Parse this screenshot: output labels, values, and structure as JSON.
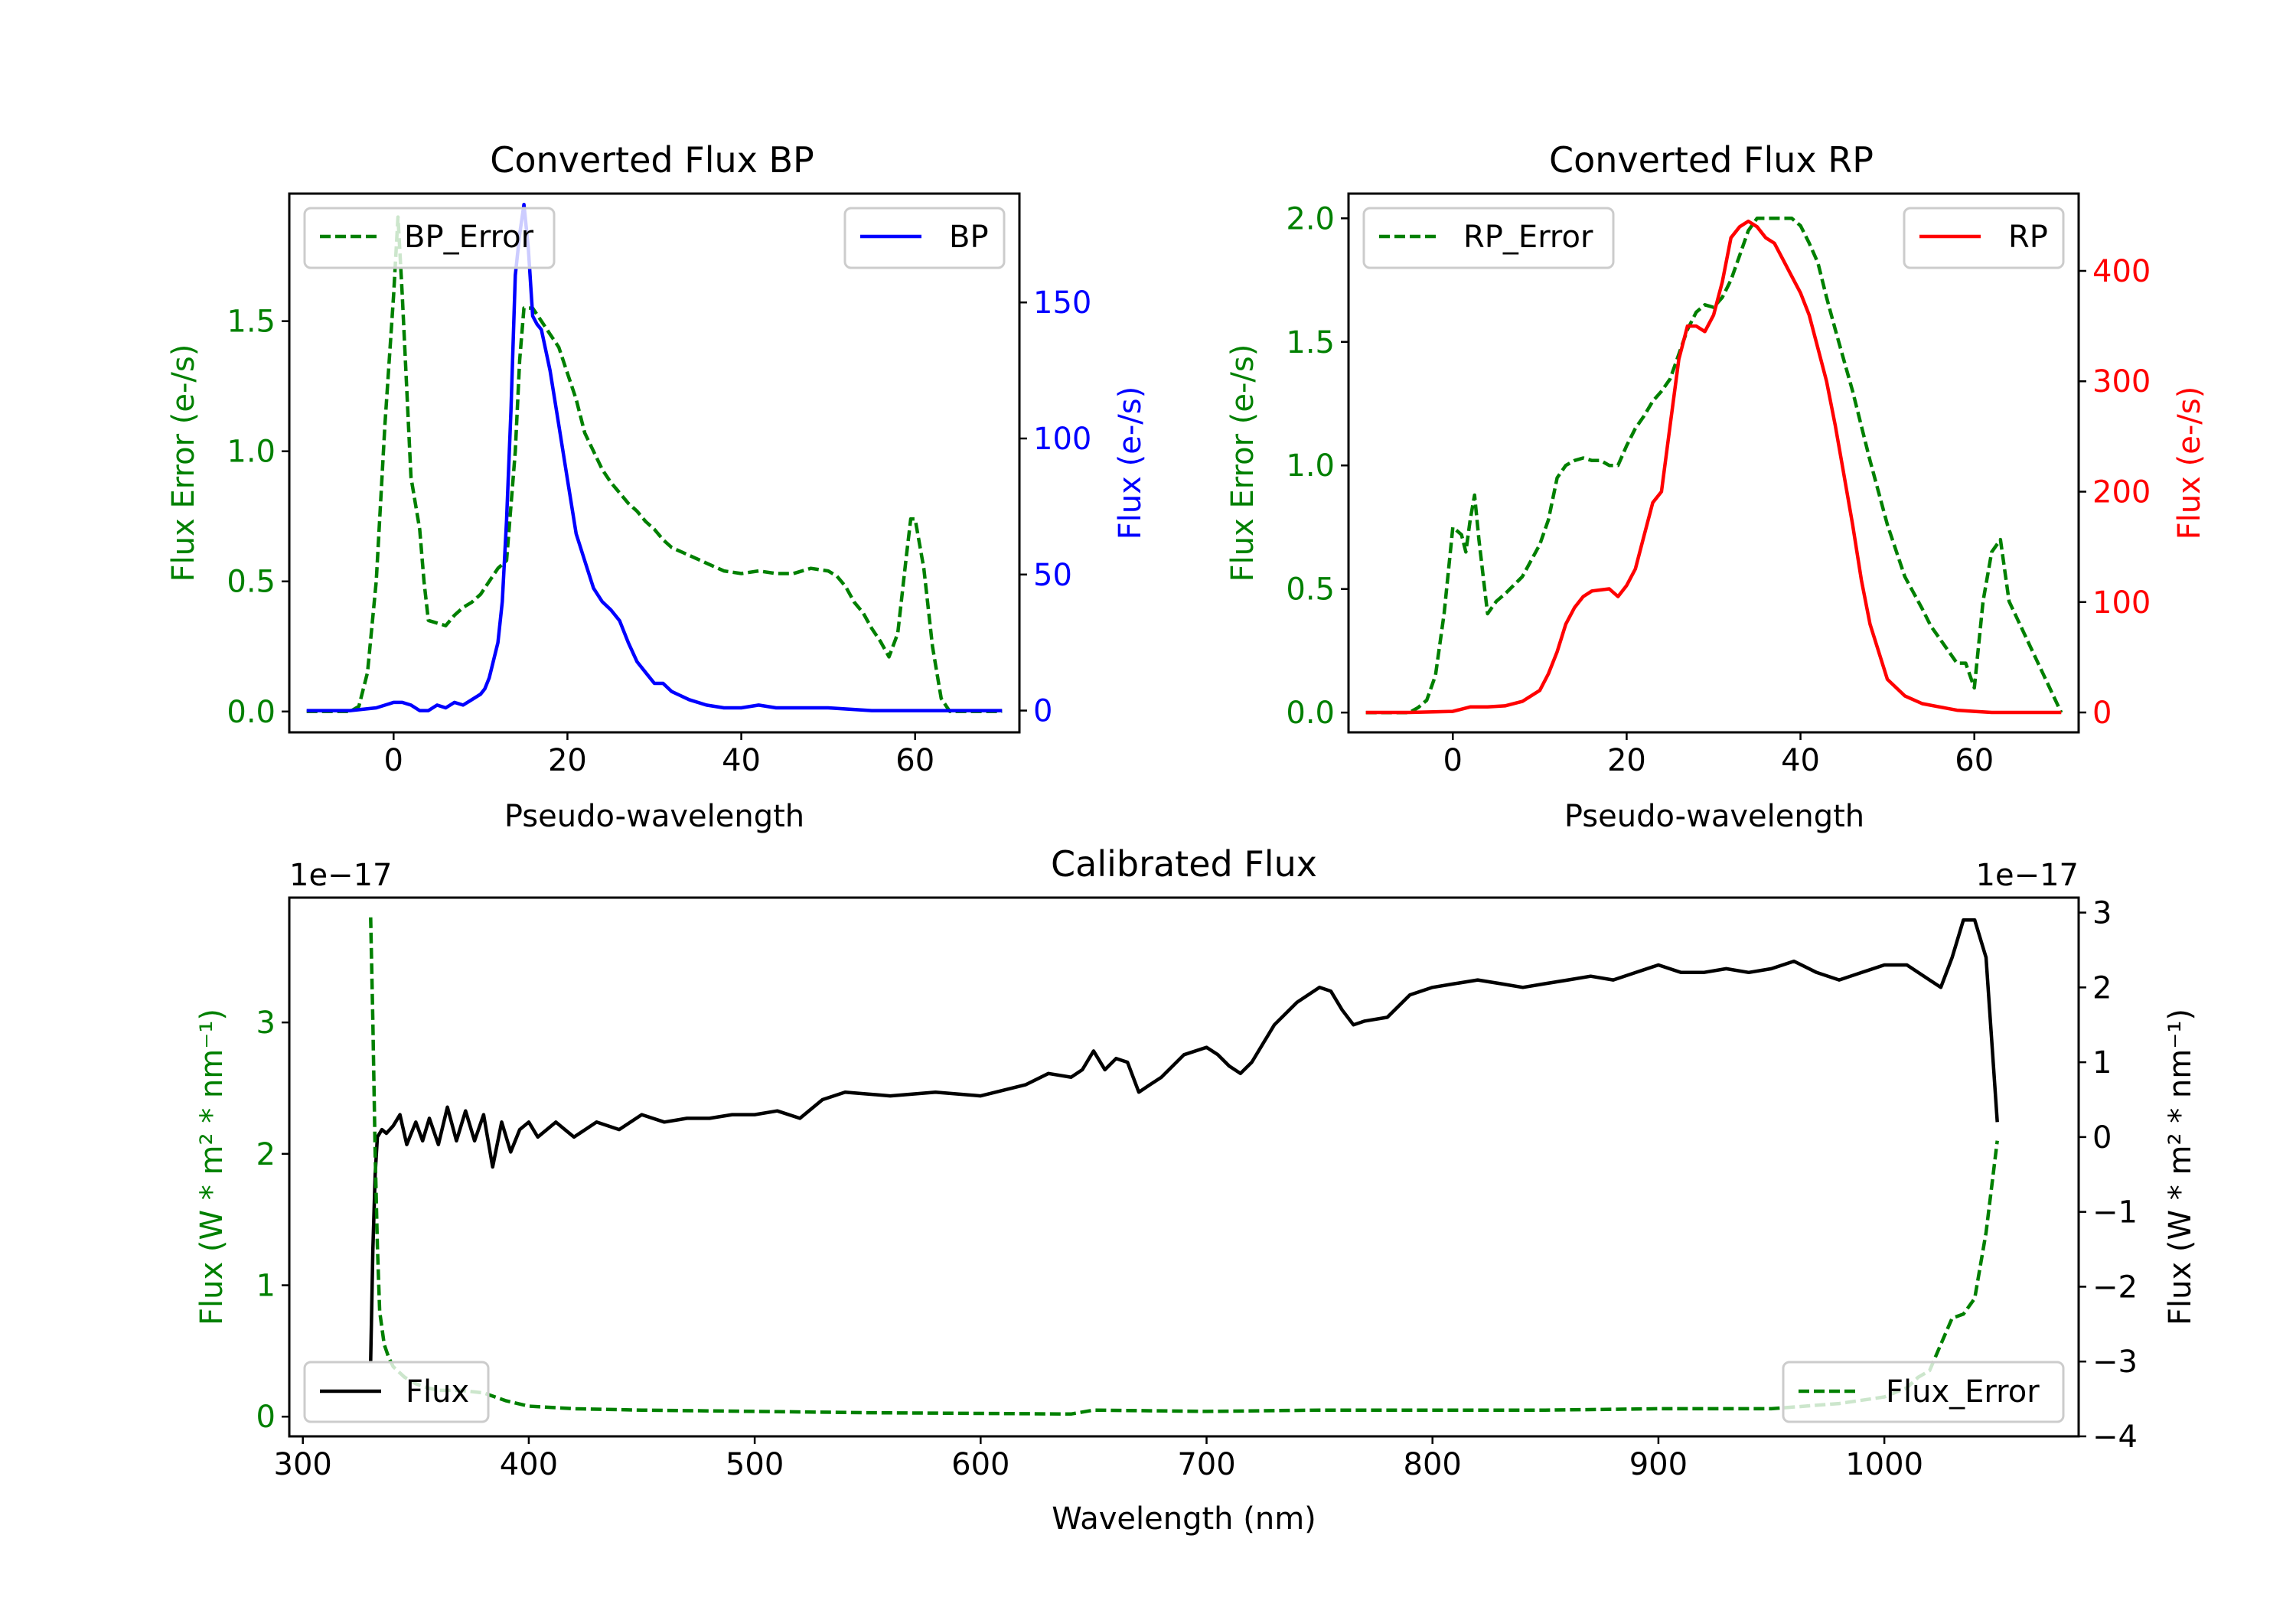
{
  "chart_data": [
    {
      "id": "bp",
      "type": "line",
      "title": "Converted Flux BP",
      "xlabel": "Pseudo-wavelength",
      "xlim": [
        -12,
        72
      ],
      "x_ticks": [
        0,
        20,
        40,
        60
      ],
      "left_axis": {
        "label": "Flux Error (e-/s)",
        "color": "#008000",
        "ylim": [
          -0.08,
          1.99
        ],
        "ticks": [
          0.0,
          0.5,
          1.0,
          1.5
        ],
        "tick_labels": [
          "0.0",
          "0.5",
          "1.0",
          "1.5"
        ]
      },
      "right_axis": {
        "label": "Flux (e-/s)",
        "color": "#0000ff",
        "ylim": [
          -8,
          190
        ],
        "ticks": [
          0,
          50,
          100,
          150
        ],
        "tick_labels": [
          "0",
          "50",
          "100",
          "150"
        ]
      },
      "legend_left": {
        "label": "BP_Error",
        "placement": "upper left"
      },
      "legend_right": {
        "label": "BP",
        "placement": "upper right"
      },
      "series": [
        {
          "name": "BP_Error",
          "axis": "left",
          "color": "#008000",
          "style": "dashed",
          "x": [
            -10,
            -5,
            -4,
            -3,
            -2,
            -1,
            0,
            0.5,
            1,
            2,
            2.5,
            3,
            3.5,
            4,
            5,
            6,
            7,
            8,
            9,
            10,
            11,
            12,
            13,
            14,
            14.5,
            15,
            16,
            17,
            18,
            19,
            20,
            21,
            22,
            23,
            24,
            25,
            26,
            27,
            28,
            29,
            30,
            31,
            32,
            34,
            36,
            38,
            40,
            42,
            44,
            46,
            48,
            50,
            51,
            52,
            53,
            54,
            55,
            56,
            57,
            58,
            59,
            59.5,
            60,
            61,
            62,
            63,
            64,
            66,
            70
          ],
          "values": [
            0.0,
            0.0,
            0.02,
            0.15,
            0.5,
            1.1,
            1.6,
            1.9,
            1.6,
            0.9,
            0.8,
            0.7,
            0.5,
            0.35,
            0.34,
            0.33,
            0.37,
            0.4,
            0.42,
            0.45,
            0.5,
            0.55,
            0.58,
            1.0,
            1.35,
            1.55,
            1.55,
            1.5,
            1.45,
            1.4,
            1.3,
            1.2,
            1.07,
            1.0,
            0.93,
            0.88,
            0.84,
            0.8,
            0.77,
            0.73,
            0.7,
            0.66,
            0.63,
            0.6,
            0.57,
            0.54,
            0.53,
            0.54,
            0.53,
            0.53,
            0.55,
            0.54,
            0.52,
            0.48,
            0.42,
            0.38,
            0.32,
            0.27,
            0.21,
            0.3,
            0.6,
            0.74,
            0.74,
            0.55,
            0.25,
            0.05,
            0.0,
            0.0,
            0.0
          ]
        },
        {
          "name": "BP",
          "axis": "right",
          "color": "#0000ff",
          "style": "solid",
          "x": [
            -10,
            -5,
            -2,
            0,
            1,
            2,
            3,
            4,
            5,
            6,
            7,
            8,
            9,
            10,
            10.5,
            11,
            12,
            12.5,
            13,
            13.5,
            14,
            14.5,
            15,
            15.5,
            16,
            16.5,
            17,
            18,
            19,
            20,
            21,
            22,
            23,
            24,
            25,
            26,
            27,
            28,
            29,
            30,
            31,
            32,
            34,
            36,
            38,
            40,
            42,
            44,
            46,
            48,
            50,
            55,
            60,
            65,
            70
          ],
          "values": [
            0,
            0,
            1,
            3,
            3,
            2,
            0,
            0,
            2,
            1,
            3,
            2,
            4,
            6,
            8,
            12,
            25,
            40,
            70,
            110,
            160,
            175,
            186,
            170,
            145,
            142,
            140,
            125,
            105,
            85,
            65,
            55,
            45,
            40,
            37,
            33,
            25,
            18,
            14,
            10,
            10,
            7,
            4,
            2,
            1,
            1,
            2,
            1,
            1,
            1,
            1,
            0,
            0,
            0,
            0
          ]
        }
      ]
    },
    {
      "id": "rp",
      "type": "line",
      "title": "Converted Flux RP",
      "xlabel": "Pseudo-wavelength",
      "xlim": [
        -12,
        72
      ],
      "x_ticks": [
        0,
        20,
        40,
        60
      ],
      "left_axis": {
        "label": "Flux Error (e-/s)",
        "color": "#008000",
        "ylim": [
          -0.08,
          2.1
        ],
        "ticks": [
          0.0,
          0.5,
          1.0,
          1.5,
          2.0
        ],
        "tick_labels": [
          "0.0",
          "0.5",
          "1.0",
          "1.5",
          "2.0"
        ]
      },
      "right_axis": {
        "label": "Flux (e-/s)",
        "color": "#ff0000",
        "ylim": [
          -18,
          470
        ],
        "ticks": [
          0,
          100,
          200,
          300,
          400
        ],
        "tick_labels": [
          "0",
          "100",
          "200",
          "300",
          "400"
        ]
      },
      "legend_left": {
        "label": "RP_Error",
        "placement": "upper left"
      },
      "legend_right": {
        "label": "RP",
        "placement": "upper right"
      },
      "series": [
        {
          "name": "RP_Error",
          "axis": "right-free",
          "color": "#008000",
          "style": "dashed",
          "axis_ref": "left",
          "x": [
            -10,
            -5,
            -4,
            -3,
            -2,
            -1,
            0,
            1,
            1.5,
            2,
            2.5,
            3,
            3.5,
            4,
            5,
            6,
            8,
            10,
            11,
            12,
            13,
            14,
            15,
            16,
            17,
            18,
            19,
            20,
            21,
            22,
            23,
            24,
            25,
            26,
            27,
            28,
            29,
            30,
            31,
            32,
            33,
            34,
            35,
            36,
            37,
            38,
            39,
            40,
            41,
            42,
            43,
            44,
            46,
            48,
            50,
            52,
            54,
            55,
            56,
            57,
            58,
            59,
            60,
            61,
            62,
            63,
            64,
            70
          ],
          "values": [
            0.0,
            0.0,
            0.02,
            0.05,
            0.15,
            0.4,
            0.75,
            0.72,
            0.65,
            0.78,
            0.88,
            0.7,
            0.55,
            0.4,
            0.45,
            0.48,
            0.55,
            0.68,
            0.78,
            0.95,
            1.0,
            1.02,
            1.03,
            1.02,
            1.02,
            1.0,
            1.0,
            1.08,
            1.15,
            1.2,
            1.26,
            1.3,
            1.35,
            1.45,
            1.55,
            1.62,
            1.65,
            1.64,
            1.68,
            1.75,
            1.85,
            1.95,
            2.0,
            2.0,
            2.0,
            2.0,
            2.0,
            1.97,
            1.9,
            1.82,
            1.68,
            1.55,
            1.3,
            1.02,
            0.76,
            0.55,
            0.42,
            0.35,
            0.3,
            0.25,
            0.2,
            0.2,
            0.1,
            0.45,
            0.65,
            0.7,
            0.45,
            0.0
          ]
        },
        {
          "name": "RP",
          "axis": "right",
          "color": "#ff0000",
          "style": "solid",
          "x": [
            -10,
            -5,
            0,
            2,
            4,
            6,
            8,
            10,
            11,
            12,
            13,
            14,
            15,
            16,
            17,
            18,
            19,
            20,
            21,
            22,
            23,
            24,
            25,
            26,
            27,
            28,
            29,
            30,
            31,
            32,
            33,
            34,
            35,
            36,
            37,
            38,
            39,
            40,
            41,
            42,
            43,
            44,
            45,
            46,
            47,
            48,
            50,
            52,
            54,
            56,
            58,
            60,
            62,
            64,
            70
          ],
          "values": [
            0,
            0,
            1,
            5,
            5,
            6,
            10,
            20,
            35,
            55,
            80,
            95,
            105,
            110,
            111,
            112,
            105,
            115,
            130,
            160,
            190,
            200,
            260,
            320,
            350,
            350,
            345,
            360,
            390,
            430,
            440,
            445,
            440,
            430,
            425,
            410,
            395,
            380,
            360,
            330,
            300,
            260,
            215,
            170,
            120,
            80,
            30,
            15,
            8,
            5,
            2,
            1,
            0,
            0,
            0
          ]
        }
      ]
    },
    {
      "id": "cal",
      "type": "line",
      "title": "Calibrated Flux",
      "xlabel": "Wavelength (nm)",
      "xlim": [
        294,
        1086
      ],
      "x_ticks": [
        300,
        400,
        500,
        600,
        700,
        800,
        900,
        1000
      ],
      "left_axis": {
        "label": "Flux (W * m² * nm⁻¹)",
        "color": "#008000",
        "offset_text": "1e−17",
        "ylim": [
          -0.15,
          3.95
        ],
        "ticks": [
          0,
          1,
          2,
          3
        ],
        "tick_labels": [
          "0",
          "1",
          "2",
          "3"
        ]
      },
      "right_axis": {
        "label": "Flux (W * m² * nm⁻¹)",
        "color": "#000000",
        "offset_text": "1e−17",
        "ylim": [
          -4.0,
          3.2
        ],
        "ticks": [
          -4,
          -3,
          -2,
          -1,
          0,
          1,
          2,
          3
        ],
        "tick_labels": [
          "−4",
          "−3",
          "−2",
          "−1",
          "0",
          "1",
          "2",
          "3"
        ]
      },
      "legend_left": {
        "label": "Flux",
        "placement": "lower left"
      },
      "legend_right": {
        "label": "Flux_Error",
        "placement": "lower right"
      },
      "series": [
        {
          "name": "Flux",
          "axis": "right",
          "color": "#000000",
          "style": "solid",
          "x": [
            330,
            331,
            332,
            333,
            335,
            337,
            340,
            343,
            346,
            350,
            353,
            356,
            360,
            364,
            368,
            372,
            376,
            380,
            384,
            388,
            392,
            396,
            400,
            404,
            408,
            412,
            416,
            420,
            430,
            440,
            450,
            460,
            470,
            480,
            490,
            500,
            510,
            520,
            530,
            540,
            560,
            580,
            600,
            620,
            630,
            640,
            645,
            650,
            655,
            660,
            665,
            670,
            675,
            680,
            690,
            700,
            705,
            710,
            715,
            720,
            730,
            740,
            750,
            755,
            760,
            765,
            770,
            780,
            790,
            800,
            810,
            820,
            830,
            840,
            850,
            860,
            870,
            880,
            890,
            900,
            910,
            920,
            930,
            940,
            950,
            960,
            970,
            980,
            990,
            1000,
            1010,
            1020,
            1025,
            1030,
            1035,
            1040,
            1045,
            1050
          ],
          "values": [
            -3.0,
            -1.5,
            -0.5,
            0.0,
            0.1,
            0.05,
            0.15,
            0.3,
            -0.1,
            0.2,
            -0.05,
            0.25,
            -0.1,
            0.4,
            -0.05,
            0.35,
            -0.05,
            0.3,
            -0.4,
            0.2,
            -0.2,
            0.1,
            0.2,
            0.0,
            0.1,
            0.2,
            0.1,
            0.0,
            0.2,
            0.1,
            0.3,
            0.2,
            0.25,
            0.25,
            0.3,
            0.3,
            0.35,
            0.25,
            0.5,
            0.6,
            0.55,
            0.6,
            0.55,
            0.7,
            0.85,
            0.8,
            0.9,
            1.15,
            0.9,
            1.05,
            1.0,
            0.6,
            0.7,
            0.8,
            1.1,
            1.2,
            1.1,
            0.95,
            0.85,
            1.0,
            1.5,
            1.8,
            2.0,
            1.95,
            1.7,
            1.5,
            1.55,
            1.6,
            1.9,
            2.0,
            2.05,
            2.1,
            2.05,
            2.0,
            2.05,
            2.1,
            2.15,
            2.1,
            2.2,
            2.3,
            2.2,
            2.2,
            2.25,
            2.2,
            2.25,
            2.35,
            2.2,
            2.1,
            2.2,
            2.3,
            2.3,
            2.1,
            2.0,
            2.4,
            2.9,
            2.9,
            2.4,
            0.2
          ]
        },
        {
          "name": "Flux_Error",
          "axis": "left",
          "color": "#008000",
          "style": "dashed",
          "x": [
            330,
            331,
            332,
            333,
            334,
            336,
            338,
            340,
            345,
            350,
            355,
            360,
            370,
            380,
            390,
            400,
            420,
            450,
            500,
            550,
            600,
            640,
            650,
            700,
            750,
            800,
            850,
            900,
            950,
            980,
            1000,
            1010,
            1015,
            1020,
            1025,
            1030,
            1035,
            1040,
            1045,
            1050
          ],
          "values": [
            3.8,
            3.0,
            2.0,
            1.3,
            0.8,
            0.55,
            0.45,
            0.38,
            0.3,
            0.25,
            0.22,
            0.2,
            0.2,
            0.18,
            0.12,
            0.08,
            0.06,
            0.05,
            0.04,
            0.03,
            0.025,
            0.02,
            0.05,
            0.04,
            0.05,
            0.05,
            0.05,
            0.06,
            0.06,
            0.1,
            0.15,
            0.22,
            0.3,
            0.35,
            0.55,
            0.75,
            0.78,
            0.9,
            1.4,
            2.1
          ]
        }
      ]
    }
  ]
}
